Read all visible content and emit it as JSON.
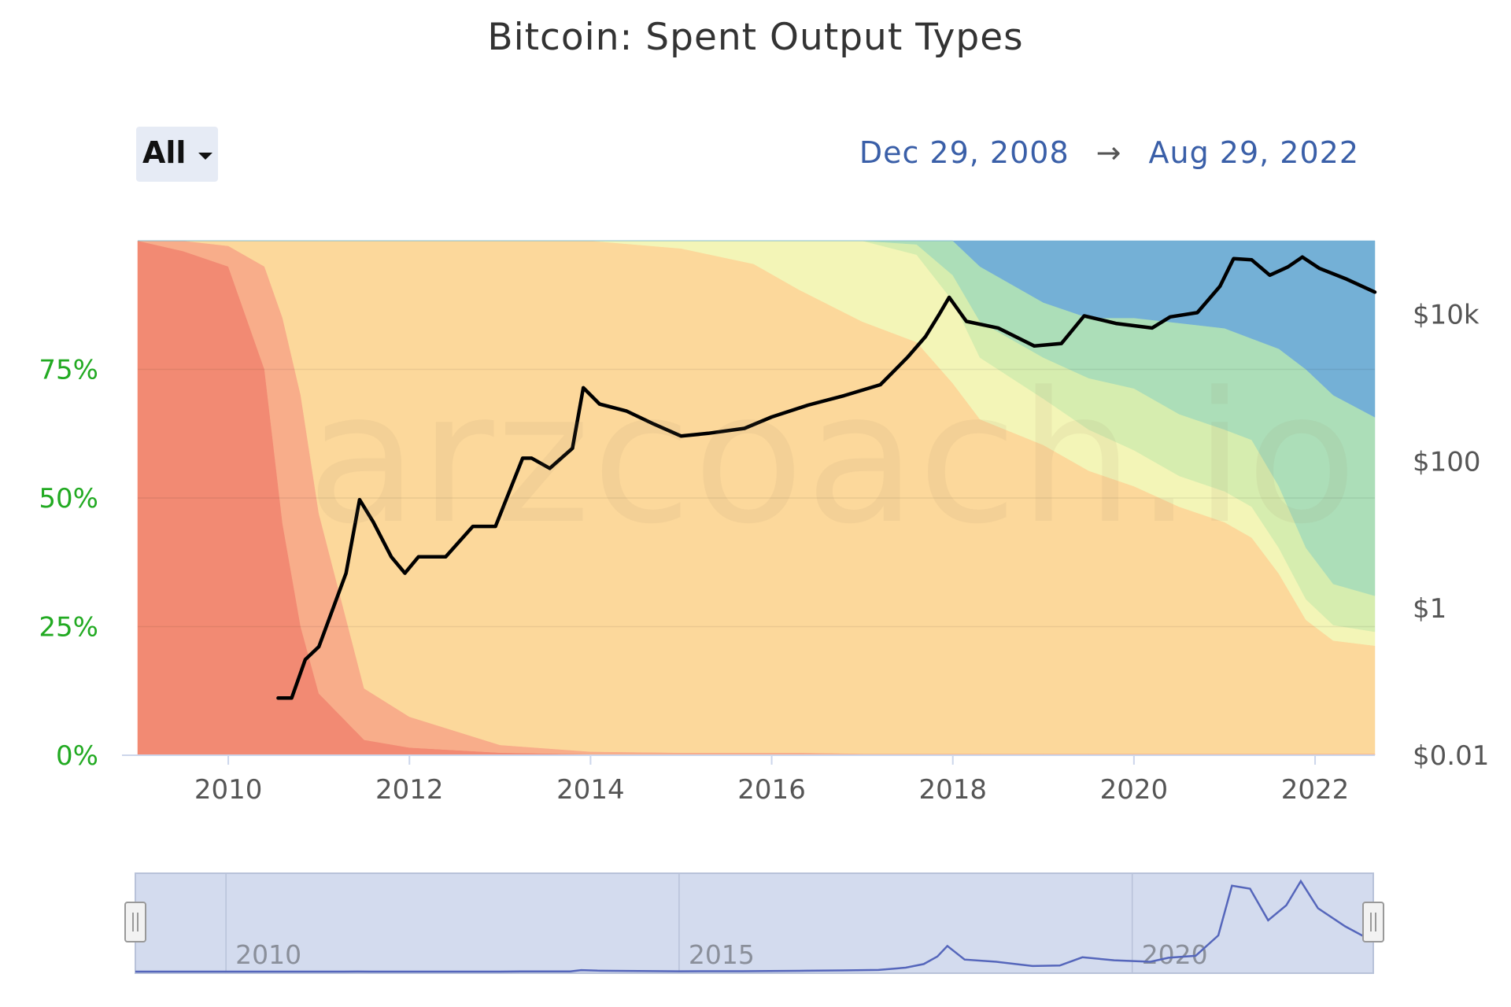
{
  "title": "Bitcoin: Spent Output Types",
  "range_selector": {
    "label": "All"
  },
  "date_range": {
    "from": "Dec 29, 2008",
    "arrow": "→",
    "to": "Aug 29, 2022"
  },
  "watermark": "arzcoach.io",
  "chart_data": {
    "type": "area",
    "stacking": "percent",
    "title": "Bitcoin: Spent Output Types",
    "x_range": [
      2009.0,
      2022.66
    ],
    "x_ticks": [
      "2010",
      "2012",
      "2014",
      "2016",
      "2018",
      "2020",
      "2022"
    ],
    "y_left": {
      "ticks": [
        "0%",
        "25%",
        "50%",
        "75%"
      ],
      "range": [
        0,
        100
      ]
    },
    "y_right": {
      "ticks": [
        "$0.01",
        "$1",
        "$100",
        "$10k"
      ],
      "scale": "log",
      "range": [
        0.01,
        100000
      ]
    },
    "grid": true,
    "legend": "none",
    "series_colors": [
      "#f28a73",
      "#f8ad8a",
      "#fcd89b",
      "#f3f5b7",
      "#d6edaf",
      "#acdeb8",
      "#74b0d6"
    ],
    "x": [
      2009.0,
      2009.5,
      2010.0,
      2010.4,
      2010.6,
      2010.8,
      2011.0,
      2011.5,
      2012.0,
      2013.0,
      2014.0,
      2015.0,
      2015.8,
      2016.3,
      2017.0,
      2017.6,
      2018.0,
      2018.3,
      2019.0,
      2019.5,
      2020.0,
      2020.5,
      2021.0,
      2021.3,
      2021.6,
      2021.9,
      2022.2,
      2022.66
    ],
    "layers": [
      [
        100,
        98,
        95,
        75,
        45,
        25,
        12,
        3,
        1.5,
        0.5,
        0.2,
        0.2,
        0.2,
        0.2,
        0.1,
        0.1,
        0.1,
        0.1,
        0.1,
        0.1,
        0.1,
        0.1,
        0.1,
        0.1,
        0.1,
        0.1,
        0.1,
        0.1
      ],
      [
        0,
        2,
        4,
        20,
        40,
        45,
        35,
        10,
        6,
        1.5,
        0.5,
        0.3,
        0.3,
        0.3,
        0.2,
        0.2,
        0.2,
        0.2,
        0.2,
        0.2,
        0.2,
        0.2,
        0.2,
        0.2,
        0.2,
        0.2,
        0.2,
        0.2
      ],
      [
        0,
        0,
        1,
        5,
        15,
        30,
        53,
        87,
        92.5,
        98,
        99.3,
        98,
        95,
        90,
        84,
        80,
        72,
        65,
        60,
        55,
        52,
        48,
        45,
        42,
        35,
        26,
        22,
        21
      ],
      [
        0,
        0,
        0,
        0,
        0,
        0,
        0,
        0,
        0,
        0,
        0,
        1.5,
        4.5,
        9.5,
        15.7,
        17,
        16,
        12,
        9,
        8,
        7,
        6,
        6,
        6,
        5,
        4,
        3,
        2.7
      ],
      [
        0,
        0,
        0,
        0,
        0,
        0,
        0,
        0,
        0,
        0,
        0,
        0,
        0,
        0,
        0,
        2,
        5,
        7,
        8,
        10,
        12,
        12,
        12,
        13,
        12,
        10,
        8,
        7
      ],
      [
        0,
        0,
        0,
        0,
        0,
        0,
        0,
        0,
        0,
        0,
        0,
        0,
        0,
        0,
        0,
        0.7,
        6.7,
        10.7,
        10.7,
        11.7,
        13.7,
        17.7,
        19.7,
        19.7,
        26.7,
        34.7,
        36.7,
        34.7
      ],
      [
        0,
        0,
        0,
        0,
        0,
        0,
        0,
        0,
        0,
        0,
        0,
        0,
        0,
        0,
        0,
        0,
        0,
        5,
        12,
        15,
        15,
        16,
        17,
        19,
        21,
        25,
        30,
        34.3
      ]
    ],
    "price_series": {
      "name": "",
      "color": "#000000",
      "x": [
        2010.55,
        2010.7,
        2010.85,
        2011.0,
        2011.3,
        2011.45,
        2011.6,
        2011.8,
        2011.95,
        2012.1,
        2012.4,
        2012.7,
        2012.95,
        2013.25,
        2013.35,
        2013.55,
        2013.8,
        2013.92,
        2014.1,
        2014.4,
        2014.7,
        2015.0,
        2015.3,
        2015.7,
        2016.0,
        2016.4,
        2016.8,
        2017.2,
        2017.5,
        2017.7,
        2017.85,
        2017.96,
        2018.15,
        2018.5,
        2018.9,
        2019.2,
        2019.45,
        2019.8,
        2020.2,
        2020.4,
        2020.7,
        2020.95,
        2021.1,
        2021.3,
        2021.5,
        2021.7,
        2021.86,
        2022.05,
        2022.35,
        2022.66
      ],
      "y": [
        0.06,
        0.06,
        0.2,
        0.3,
        3,
        30,
        15,
        5,
        3,
        5,
        5,
        13,
        13,
        110,
        110,
        80,
        150,
        1000,
        600,
        480,
        320,
        220,
        240,
        280,
        400,
        580,
        780,
        1100,
        2600,
        5000,
        10000,
        17000,
        8000,
        6500,
        3700,
        4000,
        9500,
        7500,
        6500,
        9200,
        10500,
        24000,
        57000,
        55000,
        34000,
        44000,
        60000,
        42000,
        30000,
        20000
      ]
    },
    "navigator": {
      "x_ticks": [
        "2010",
        "2015",
        "2020"
      ],
      "range": [
        2009.0,
        2022.66
      ]
    }
  }
}
